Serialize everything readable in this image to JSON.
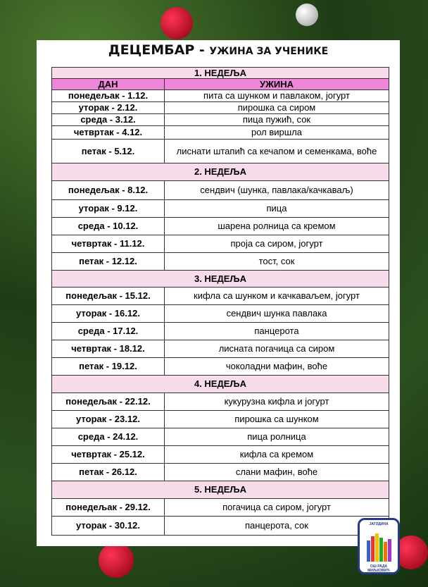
{
  "title": {
    "main": "ДЕЦЕМБАР - ",
    "sub": "УЖИНА ЗА УЧЕНИКЕ"
  },
  "columns": {
    "day": "ДАН",
    "meal": "УЖИНА"
  },
  "weeks": [
    {
      "label": "1. НЕДЕЉА",
      "rows": [
        {
          "day": "понедељак - 1.12.",
          "meal": "пита са шунком и павлаком,  јогурт"
        },
        {
          "day": "уторак - 2.12.",
          "meal": "пирошка са сиром"
        },
        {
          "day": "среда - 3.12.",
          "meal": "пица пужић, сок"
        },
        {
          "day": "четвртак - 4.12.",
          "meal": "рол виршла"
        },
        {
          "day": "петак - 5.12.",
          "meal": "лиснати штапић са кечапом и семенкама, воће"
        }
      ]
    },
    {
      "label": "2. НЕДЕЉА",
      "rows": [
        {
          "day": "понедељак - 8.12.",
          "meal": "сендвич (шунка, павлака/качкаваљ)"
        },
        {
          "day": "уторак - 9.12.",
          "meal": "пица"
        },
        {
          "day": "среда - 10.12.",
          "meal": "шарена ролница са кремом"
        },
        {
          "day": "четвртак - 11.12.",
          "meal": "проја са сиром, јогурт"
        },
        {
          "day": "петак - 12.12.",
          "meal": "тост, сок"
        }
      ]
    },
    {
      "label": "3. НЕДЕЉА",
      "rows": [
        {
          "day": "понедељак - 15.12.",
          "meal": "кифла са шунком и качкаваљем,  јогурт"
        },
        {
          "day": "уторак - 16.12.",
          "meal": "сендвич шунка павлака"
        },
        {
          "day": "среда - 17.12.",
          "meal": "панцерота"
        },
        {
          "day": "четвртак - 18.12.",
          "meal": "лисната погачица са сиром"
        },
        {
          "day": "петак - 19.12.",
          "meal": "чоколадни мафин, воће"
        }
      ]
    },
    {
      "label": "4. НЕДЕЉА",
      "rows": [
        {
          "day": "понедељак - 22.12.",
          "meal": "кукурузна кифла и јогурт"
        },
        {
          "day": "уторак - 23.12.",
          "meal": "пирошка са шунком"
        },
        {
          "day": "среда - 24.12.",
          "meal": "пица ролница"
        },
        {
          "day": "четвртак - 25.12.",
          "meal": "кифла са кремом"
        },
        {
          "day": "петак - 26.12.",
          "meal": "слани мафин, воће"
        }
      ]
    },
    {
      "label": "5. НЕДЕЉА",
      "rows": [
        {
          "day": "понедељак - 29.12.",
          "meal": "погачица са сиром, јогурт"
        },
        {
          "day": "уторак - 30.12.",
          "meal": "панцерота, сок"
        }
      ]
    }
  ],
  "logo": {
    "top": "ЈАГОДИНА",
    "bottom": "ОШ РАДА МИЉКОВИЋ"
  }
}
